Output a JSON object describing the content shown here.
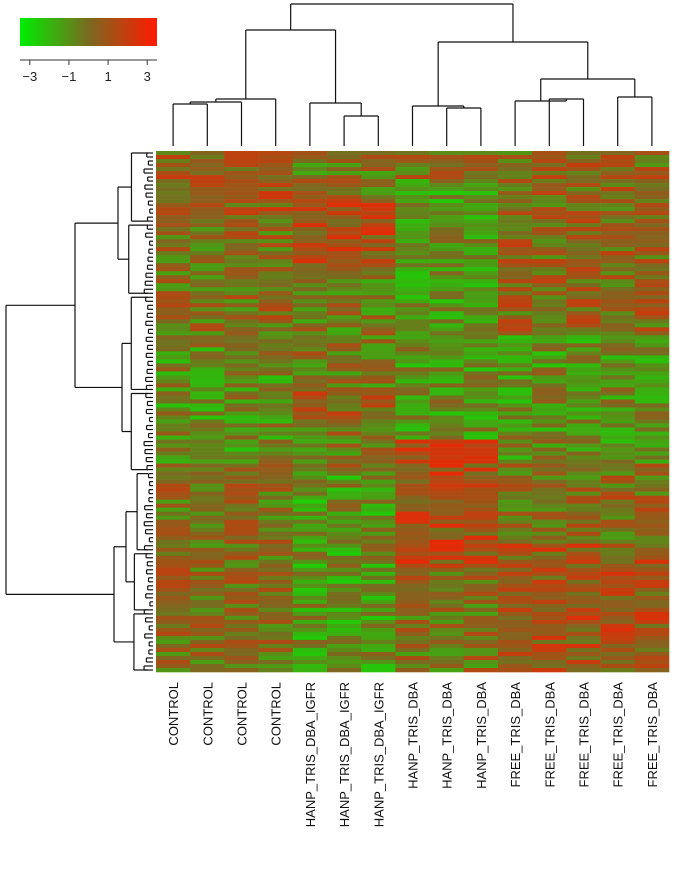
{
  "chart_data": {
    "type": "heatmap",
    "title": "",
    "xlabel": "",
    "ylabel": "",
    "color_scale": {
      "low": "#00ee00",
      "mid": "#7a6a20",
      "high": "#ff1a00",
      "range": [
        -3.5,
        3.5
      ],
      "ticks": [
        "−3",
        "−1",
        "1",
        "3"
      ],
      "tick_values": [
        -3,
        -1,
        1,
        3
      ]
    },
    "columns": [
      "CONTROL",
      "CONTROL",
      "CONTROL",
      "CONTROL",
      "HANP_TRIS_DBA_IGFR",
      "HANP_TRIS_DBA_IGFR",
      "HANP_TRIS_DBA_IGFR",
      "HANP_TRIS_DBA",
      "HANP_TRIS_DBA",
      "HANP_TRIS_DBA",
      "FREE_TRIS_DBA",
      "FREE_TRIS_DBA",
      "FREE_TRIS_DBA",
      "FREE_TRIS_DBA",
      "FREE_TRIS_DBA"
    ],
    "groups": [
      {
        "name": "CONTROL",
        "columns": [
          0,
          3
        ]
      },
      {
        "name": "HANP_TRIS_DBA_IGFR",
        "columns": [
          4,
          6
        ]
      },
      {
        "name": "HANP_TRIS_DBA",
        "columns": [
          7,
          9
        ]
      },
      {
        "name": "FREE_TRIS_DBA",
        "columns": [
          10,
          14
        ]
      }
    ],
    "n_rows": 130,
    "row_dendrogram": true,
    "column_dendrogram": true,
    "grid": false,
    "legend": "top-left"
  }
}
